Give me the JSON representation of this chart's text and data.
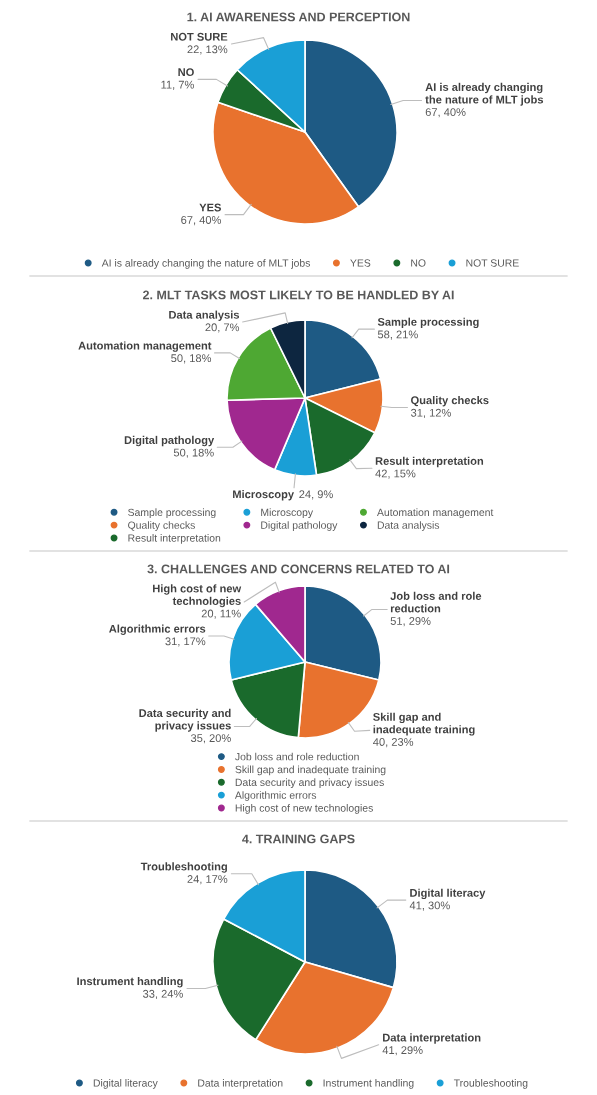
{
  "chart_data": [
    {
      "type": "pie",
      "title": "1. AI AWARENESS AND PERCEPTION",
      "categories": [
        "AI is already changing the nature of MLT jobs",
        "YES",
        "NO",
        "NOT SURE"
      ],
      "values": [
        67,
        67,
        11,
        22
      ],
      "value_labels": [
        "67, 40%",
        "67, 40%",
        "11, 7%",
        "22, 13%"
      ],
      "colors": [
        "#1e5a84",
        "#e8722e",
        "#1a6a2c",
        "#1a9fd6"
      ],
      "legend": "bottom"
    },
    {
      "type": "pie",
      "title": "2. MLT TASKS MOST LIKELY TO BE HANDLED BY AI",
      "categories": [
        "Sample processing",
        "Quality checks",
        "Result interpretation",
        "Microscopy",
        "Digital pathology",
        "Automation management",
        "Data analysis"
      ],
      "values": [
        58,
        31,
        42,
        24,
        50,
        50,
        20
      ],
      "value_labels": [
        "58, 21%",
        "31, 12%",
        "42, 15%",
        "24, 9%",
        "50, 18%",
        "50, 18%",
        "20, 7%"
      ],
      "colors": [
        "#1e5a84",
        "#e8722e",
        "#1a6a2c",
        "#1a9fd6",
        "#a0288f",
        "#4ea833",
        "#0d2640"
      ],
      "legend": "bottom"
    },
    {
      "type": "pie",
      "title": "3. CHALLENGES AND CONCERNS RELATED TO AI",
      "categories": [
        "Job loss and role reduction",
        "Skill gap and inadequate training",
        "Data security and privacy issues",
        "Algorithmic errors",
        "High cost of new technologies"
      ],
      "values": [
        51,
        40,
        35,
        31,
        20
      ],
      "value_labels": [
        "51, 29%",
        "40, 23%",
        "35, 20%",
        "31, 17%",
        "20, 11%"
      ],
      "colors": [
        "#1e5a84",
        "#e8722e",
        "#1a6a2c",
        "#1a9fd6",
        "#a0288f"
      ],
      "legend": "bottom"
    },
    {
      "type": "pie",
      "title": "4. TRAINING GAPS",
      "categories": [
        "Digital literacy",
        "Data interpretation",
        "Instrument handling",
        "Troubleshooting"
      ],
      "values": [
        41,
        41,
        33,
        24
      ],
      "value_labels": [
        "41, 30%",
        "41, 29%",
        "33, 24%",
        "24, 17%"
      ],
      "colors": [
        "#1e5a84",
        "#e8722e",
        "#1a6a2c",
        "#1a9fd6"
      ],
      "legend": "bottom"
    }
  ]
}
